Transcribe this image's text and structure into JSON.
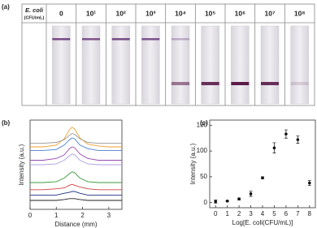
{
  "panel_labels": [
    "(a)",
    "(b)",
    "(c)"
  ],
  "strip_table": {
    "row_label": [
      "E. coli",
      "(CFU/mL)"
    ],
    "columns": [
      "0",
      "10¹",
      "10²",
      "10³",
      "10⁴",
      "10⁵",
      "10⁶",
      "10⁷",
      "10⁸"
    ]
  },
  "chart_data": [
    {
      "type": "line",
      "x_label": "Distance (mm)",
      "y_label": "Intensity (a.u.)",
      "x": [
        0,
        0.5,
        1,
        1.3,
        1.5,
        1.6,
        1.7,
        1.9,
        2.2,
        2.6,
        3,
        3.5
      ],
      "xlim": [
        0,
        3.5
      ],
      "xticks": [
        0,
        1,
        2,
        3
      ],
      "ylim": [
        0,
        100
      ],
      "series": [
        {
          "color": "#f0a030",
          "values": [
            70,
            70,
            72,
            79,
            89,
            92,
            90,
            80,
            73,
            71,
            70,
            70
          ]
        },
        {
          "color": "#9a9a9a",
          "values": [
            74,
            74,
            75,
            78,
            83,
            85,
            84,
            79,
            75,
            74,
            74,
            74
          ]
        },
        {
          "color": "#4a7fd0",
          "values": [
            66,
            66,
            67,
            72,
            78,
            80,
            79,
            72,
            68,
            66,
            66,
            66
          ]
        },
        {
          "color": "#9a4ab0",
          "values": [
            55,
            55,
            57,
            61,
            68,
            70,
            69,
            62,
            57,
            55,
            55,
            55
          ]
        },
        {
          "color": "#b0a0e0",
          "values": [
            50,
            50,
            51,
            55,
            60,
            62,
            61,
            55,
            51,
            50,
            50,
            50
          ]
        },
        {
          "color": "#3a9a3a",
          "values": [
            30,
            30,
            31,
            35,
            40,
            42,
            41,
            35,
            31,
            30,
            30,
            30
          ]
        },
        {
          "color": "#d04040",
          "values": [
            22,
            22,
            23,
            24,
            27,
            28,
            27,
            25,
            23,
            22,
            22,
            22
          ]
        },
        {
          "color": "#203080",
          "values": [
            16,
            16,
            16,
            18,
            19,
            20,
            20,
            18,
            16,
            16,
            16,
            16
          ]
        },
        {
          "color": "#222222",
          "values": [
            10,
            10,
            10,
            11,
            12,
            12,
            12,
            11,
            10,
            10,
            10,
            10
          ]
        }
      ]
    },
    {
      "type": "scatter",
      "x_label": "Log[E. coli(CFU/mL)]",
      "y_label": "Intensity (a.u.)",
      "x": [
        0,
        1,
        2,
        3,
        4,
        5,
        6,
        7,
        8
      ],
      "values": [
        2,
        3,
        7,
        17,
        48,
        106,
        133,
        122,
        38
      ],
      "errors": [
        3,
        1,
        2,
        5,
        2,
        10,
        8,
        7,
        5
      ],
      "color": "#111111",
      "xlim": [
        -0.5,
        8.5
      ],
      "xticks": [
        0,
        1,
        2,
        3,
        4,
        5,
        6,
        7,
        8
      ],
      "ylim": [
        -10,
        160
      ],
      "yticks": [
        0,
        50,
        100,
        150
      ]
    }
  ]
}
